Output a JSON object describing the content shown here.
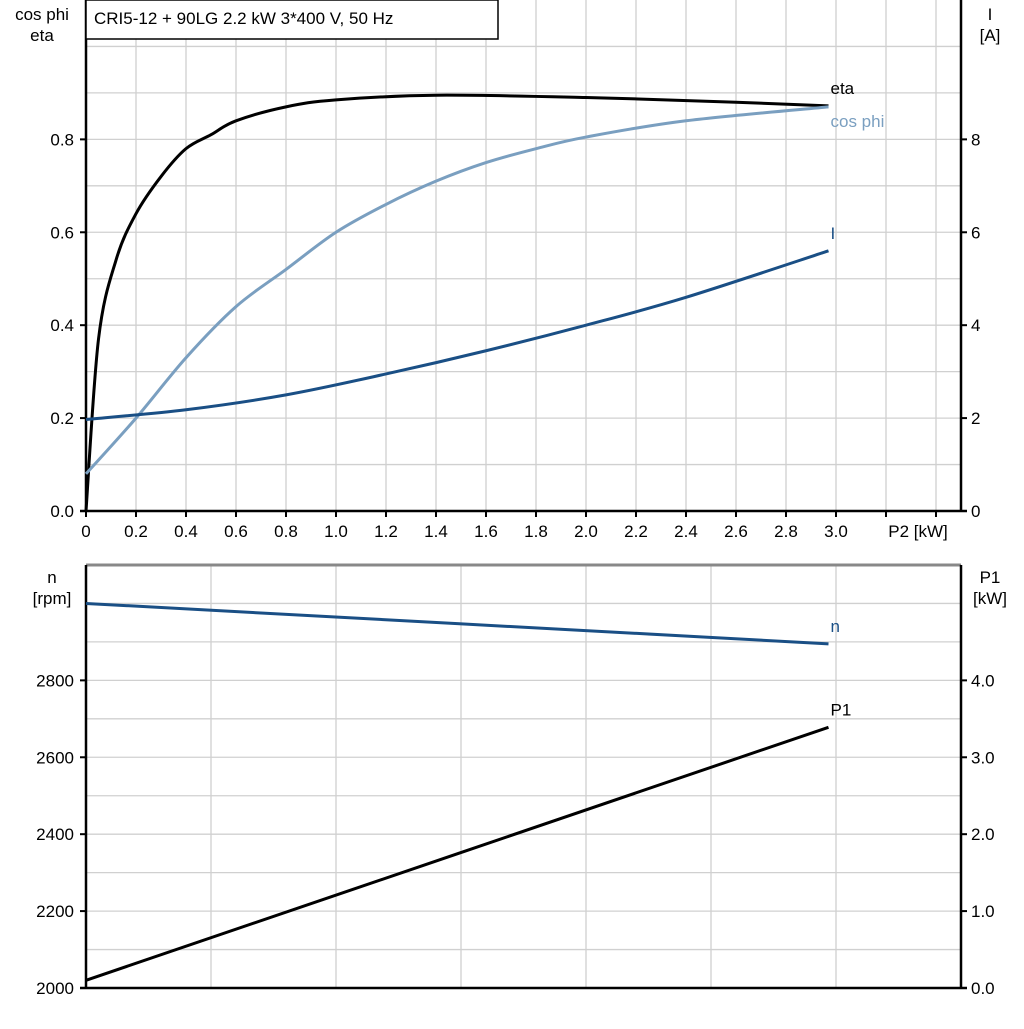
{
  "chart_data": [
    {
      "type": "line",
      "title": "CRI5-12 + 90LG   2.2 kW   3*400 V, 50 Hz",
      "xlabel": "P2 [kW]",
      "ylabel_left": [
        "cos phi",
        "eta"
      ],
      "ylabel_right": [
        "I",
        "[A]"
      ],
      "xlim": [
        0,
        3.5
      ],
      "ylim_left": [
        0,
        1.1
      ],
      "ylim_right": [
        0,
        11
      ],
      "x_ticks": [
        "0",
        "0.2",
        "0.4",
        "0.6",
        "0.8",
        "1.0",
        "1.2",
        "1.4",
        "1.6",
        "1.8",
        "2.0",
        "2.2",
        "2.4",
        "2.6",
        "2.8",
        "3.0"
      ],
      "y_left_ticks": [
        "0.0",
        "0.2",
        "0.4",
        "0.6",
        "0.8"
      ],
      "y_right_ticks": [
        "0",
        "2",
        "4",
        "6",
        "8"
      ],
      "grid": true,
      "series": [
        {
          "name": "eta",
          "axis": "left",
          "color": "#000000",
          "x": [
            0,
            0.05,
            0.12,
            0.2,
            0.3,
            0.4,
            0.5,
            0.6,
            0.8,
            1.0,
            1.4,
            2.0,
            2.6,
            2.97
          ],
          "y": [
            0,
            0.37,
            0.54,
            0.64,
            0.72,
            0.78,
            0.81,
            0.84,
            0.87,
            0.885,
            0.895,
            0.89,
            0.88,
            0.872
          ]
        },
        {
          "name": "cos phi",
          "axis": "left",
          "color": "#7a9fc0",
          "x": [
            0,
            0.2,
            0.4,
            0.6,
            0.8,
            1.0,
            1.2,
            1.4,
            1.6,
            1.8,
            2.0,
            2.4,
            2.97
          ],
          "y": [
            0.08,
            0.2,
            0.33,
            0.44,
            0.52,
            0.6,
            0.66,
            0.71,
            0.75,
            0.78,
            0.805,
            0.84,
            0.87
          ]
        },
        {
          "name": "I",
          "axis": "right",
          "color": "#1a4f85",
          "x": [
            0,
            0.4,
            0.8,
            1.2,
            1.6,
            2.0,
            2.4,
            2.97
          ],
          "y": [
            1.97,
            2.18,
            2.5,
            2.95,
            3.45,
            4.0,
            4.6,
            5.6
          ]
        }
      ]
    },
    {
      "type": "line",
      "ylabel_left": [
        "n",
        "[rpm]"
      ],
      "ylabel_right": [
        "P1",
        "[kW]"
      ],
      "xlim": [
        0,
        3.5
      ],
      "ylim_left": [
        2000,
        3100
      ],
      "ylim_right": [
        0,
        5.5
      ],
      "y_left_ticks": [
        "2000",
        "2200",
        "2400",
        "2600",
        "2800"
      ],
      "y_right_ticks": [
        "0.0",
        "1.0",
        "2.0",
        "3.0",
        "4.0"
      ],
      "grid": true,
      "series": [
        {
          "name": "n",
          "axis": "left",
          "color": "#1a4f85",
          "x": [
            0,
            2.97
          ],
          "y": [
            3000,
            2895
          ]
        },
        {
          "name": "P1",
          "axis": "right",
          "color": "#000000",
          "x": [
            0,
            2.97
          ],
          "y": [
            0.1,
            3.39
          ]
        }
      ]
    }
  ]
}
